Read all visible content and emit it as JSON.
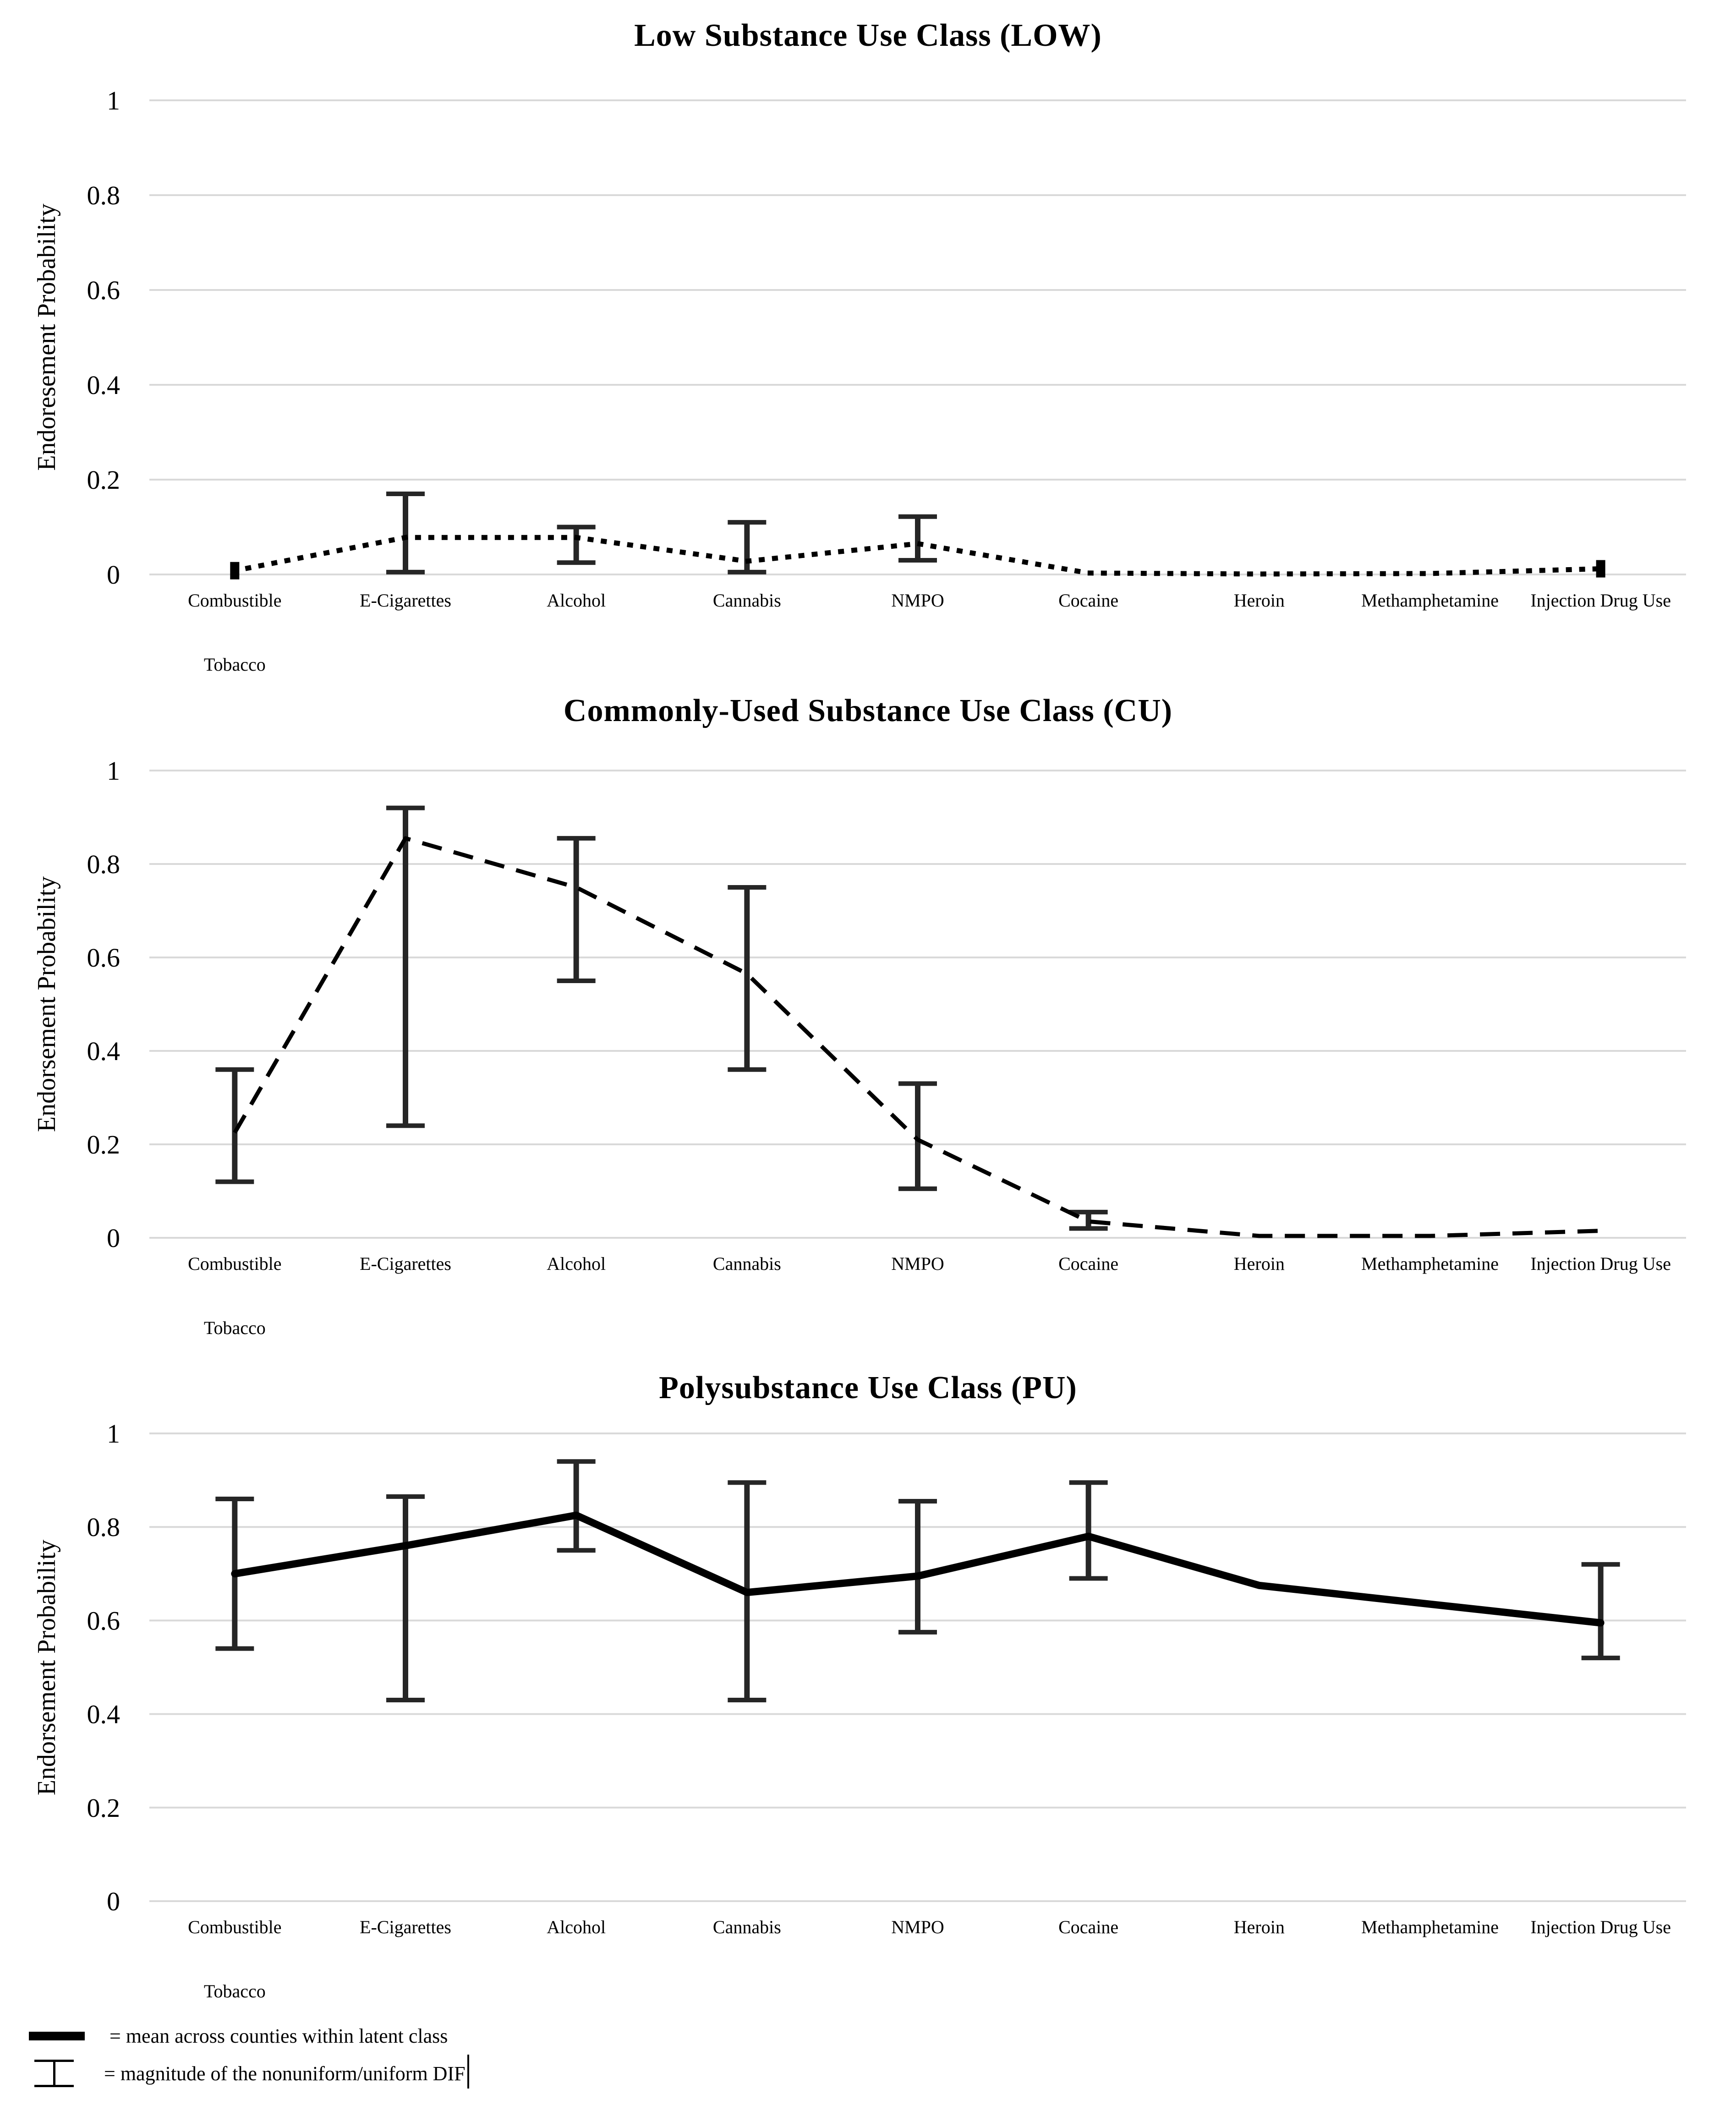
{
  "page": {
    "background": "#ffffff",
    "text_color": "#000000",
    "gridline_color": "#d9d9d9",
    "series_color": "#000000",
    "error_bar_color": "#262626"
  },
  "chart_data": [
    {
      "type": "line",
      "title": "Low Substance Use Class (LOW)",
      "ylabel": "Endoresement Probability",
      "xlabel": "",
      "ylim": [
        0,
        1
      ],
      "ytick_labels": [
        "0",
        "0.2",
        "0.4",
        "0.6",
        "0.8",
        "1"
      ],
      "grid": true,
      "legend_position": "none",
      "line_style": "dotted",
      "categories": [
        "Combustible Tobacco",
        "E-Cigarettes",
        "Alcohol",
        "Cannabis",
        "NMPO",
        "Cocaine",
        "Heroin",
        "Methamphetamine",
        "Injection Drug Use"
      ],
      "category_lines": [
        [
          "Combustible",
          "Tobacco"
        ],
        [
          "E-Cigarettes"
        ],
        [
          "Alcohol"
        ],
        [
          "Cannabis"
        ],
        [
          "NMPO"
        ],
        [
          "Cocaine"
        ],
        [
          "Heroin"
        ],
        [
          "Methamphetamine"
        ],
        [
          "Injection Drug Use"
        ]
      ],
      "values": [
        0.008,
        0.078,
        0.078,
        0.028,
        0.065,
        0.003,
        0.001,
        0.002,
        0.012
      ],
      "error_bars": [
        null,
        [
          0.005,
          0.17
        ],
        [
          0.025,
          0.1
        ],
        [
          0.005,
          0.11
        ],
        [
          0.03,
          0.122
        ],
        null,
        null,
        null,
        null
      ],
      "endpoint_markers": [
        0,
        8
      ]
    },
    {
      "type": "line",
      "title": "Commonly-Used Substance Use Class (CU)",
      "ylabel": "Endorsement Probability",
      "xlabel": "",
      "ylim": [
        0,
        1
      ],
      "ytick_labels": [
        "0",
        "0.2",
        "0.4",
        "0.6",
        "0.8",
        "1"
      ],
      "grid": true,
      "legend_position": "none",
      "line_style": "dashed",
      "categories": [
        "Combustible Tobacco",
        "E-Cigarettes",
        "Alcohol",
        "Cannabis",
        "NMPO",
        "Cocaine",
        "Heroin",
        "Methamphetamine",
        "Injection Drug Use"
      ],
      "category_lines": [
        [
          "Combustible",
          "Tobacco"
        ],
        [
          "E-Cigarettes"
        ],
        [
          "Alcohol"
        ],
        [
          "Cannabis"
        ],
        [
          "NMPO"
        ],
        [
          "Cocaine"
        ],
        [
          "Heroin"
        ],
        [
          "Methamphetamine"
        ],
        [
          "Injection Drug Use"
        ]
      ],
      "values": [
        0.225,
        0.855,
        0.75,
        0.565,
        0.21,
        0.035,
        0.004,
        0.004,
        0.015
      ],
      "error_bars": [
        [
          0.12,
          0.36
        ],
        [
          0.24,
          0.92
        ],
        [
          0.55,
          0.855
        ],
        [
          0.36,
          0.75
        ],
        [
          0.105,
          0.33
        ],
        [
          0.02,
          0.055
        ],
        null,
        null,
        null
      ],
      "endpoint_markers": []
    },
    {
      "type": "line",
      "title": "Polysubstance Use Class (PU)",
      "ylabel": "Endorsement Probability",
      "xlabel": "",
      "ylim": [
        0,
        1
      ],
      "ytick_labels": [
        "0",
        "0.2",
        "0.4",
        "0.6",
        "0.8",
        "1"
      ],
      "grid": true,
      "legend_position": "none",
      "line_style": "solid",
      "categories": [
        "Combustible Tobacco",
        "E-Cigarettes",
        "Alcohol",
        "Cannabis",
        "NMPO",
        "Cocaine",
        "Heroin",
        "Methamphetamine",
        "Injection Drug Use"
      ],
      "category_lines": [
        [
          "Combustible",
          "Tobacco"
        ],
        [
          "E-Cigarettes"
        ],
        [
          "Alcohol"
        ],
        [
          "Cannabis"
        ],
        [
          "NMPO"
        ],
        [
          "Cocaine"
        ],
        [
          "Heroin"
        ],
        [
          "Methamphetamine"
        ],
        [
          "Injection Drug Use"
        ]
      ],
      "values": [
        0.7,
        0.76,
        0.825,
        0.66,
        0.695,
        0.78,
        0.675,
        0.635,
        0.595
      ],
      "error_bars": [
        [
          0.54,
          0.86
        ],
        [
          0.43,
          0.865
        ],
        [
          0.75,
          0.94
        ],
        [
          0.43,
          0.895
        ],
        [
          0.575,
          0.855
        ],
        [
          0.69,
          0.895
        ],
        null,
        null,
        [
          0.52,
          0.72
        ]
      ],
      "endpoint_markers": []
    }
  ],
  "legend": {
    "items": [
      {
        "swatch": "mean-line-swatch",
        "label": "= mean across counties within latent class"
      },
      {
        "swatch": "error-bar-swatch",
        "label": "= magnitude of the nonuniform/uniform DIF"
      }
    ],
    "text_cursor_visible": true
  }
}
